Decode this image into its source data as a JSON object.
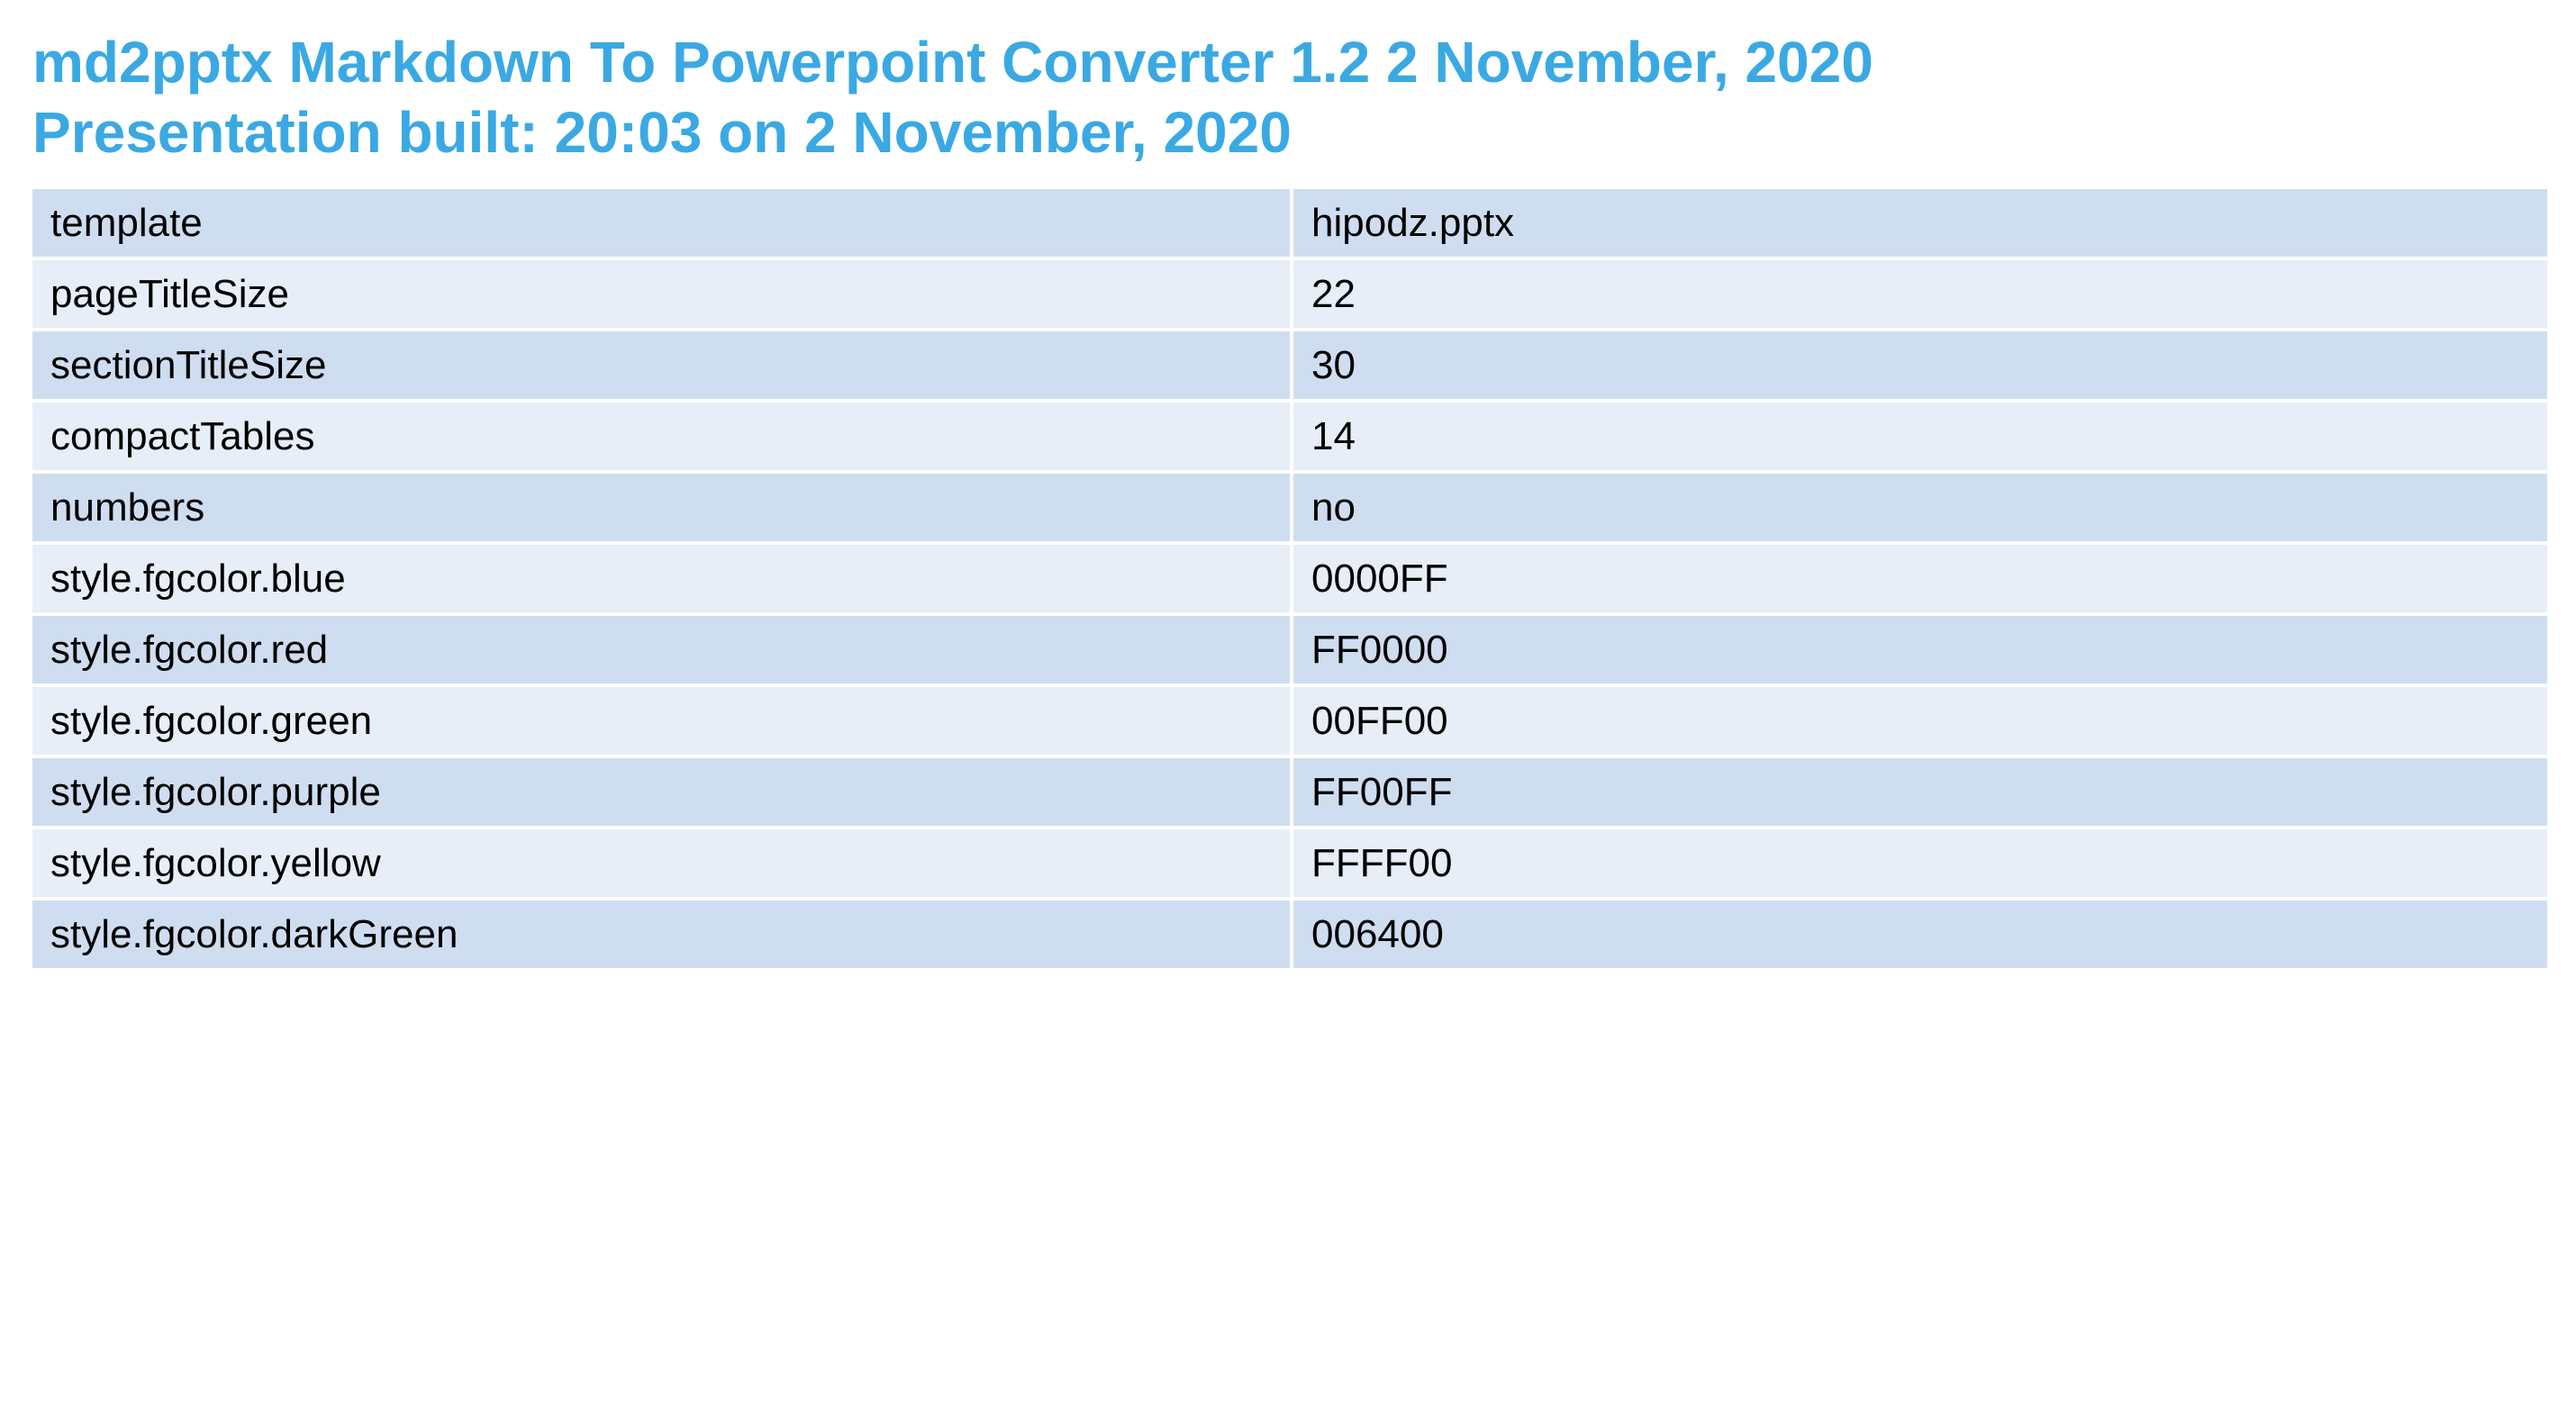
{
  "header": {
    "title_line_1": "md2pptx Markdown To Powerpoint Converter 1.2 2 November, 2020",
    "title_line_2": "Presentation built: 20:03 on 2 November, 2020"
  },
  "colors": {
    "title": "#3AA9E3",
    "row_dark": "#CFDDF0",
    "row_light": "#E8EEF8",
    "text": "#000000"
  },
  "table": {
    "rows": [
      {
        "key": "template",
        "value": "hipodz.pptx"
      },
      {
        "key": "pageTitleSize",
        "value": "22"
      },
      {
        "key": "sectionTitleSize",
        "value": "30"
      },
      {
        "key": "compactTables",
        "value": "14"
      },
      {
        "key": "numbers",
        "value": "no"
      },
      {
        "key": "style.fgcolor.blue",
        "value": "0000FF"
      },
      {
        "key": "style.fgcolor.red",
        "value": "FF0000"
      },
      {
        "key": "style.fgcolor.green",
        "value": "00FF00"
      },
      {
        "key": "style.fgcolor.purple",
        "value": "FF00FF"
      },
      {
        "key": "style.fgcolor.yellow",
        "value": "FFFF00"
      },
      {
        "key": "style.fgcolor.darkGreen",
        "value": "006400"
      }
    ]
  }
}
